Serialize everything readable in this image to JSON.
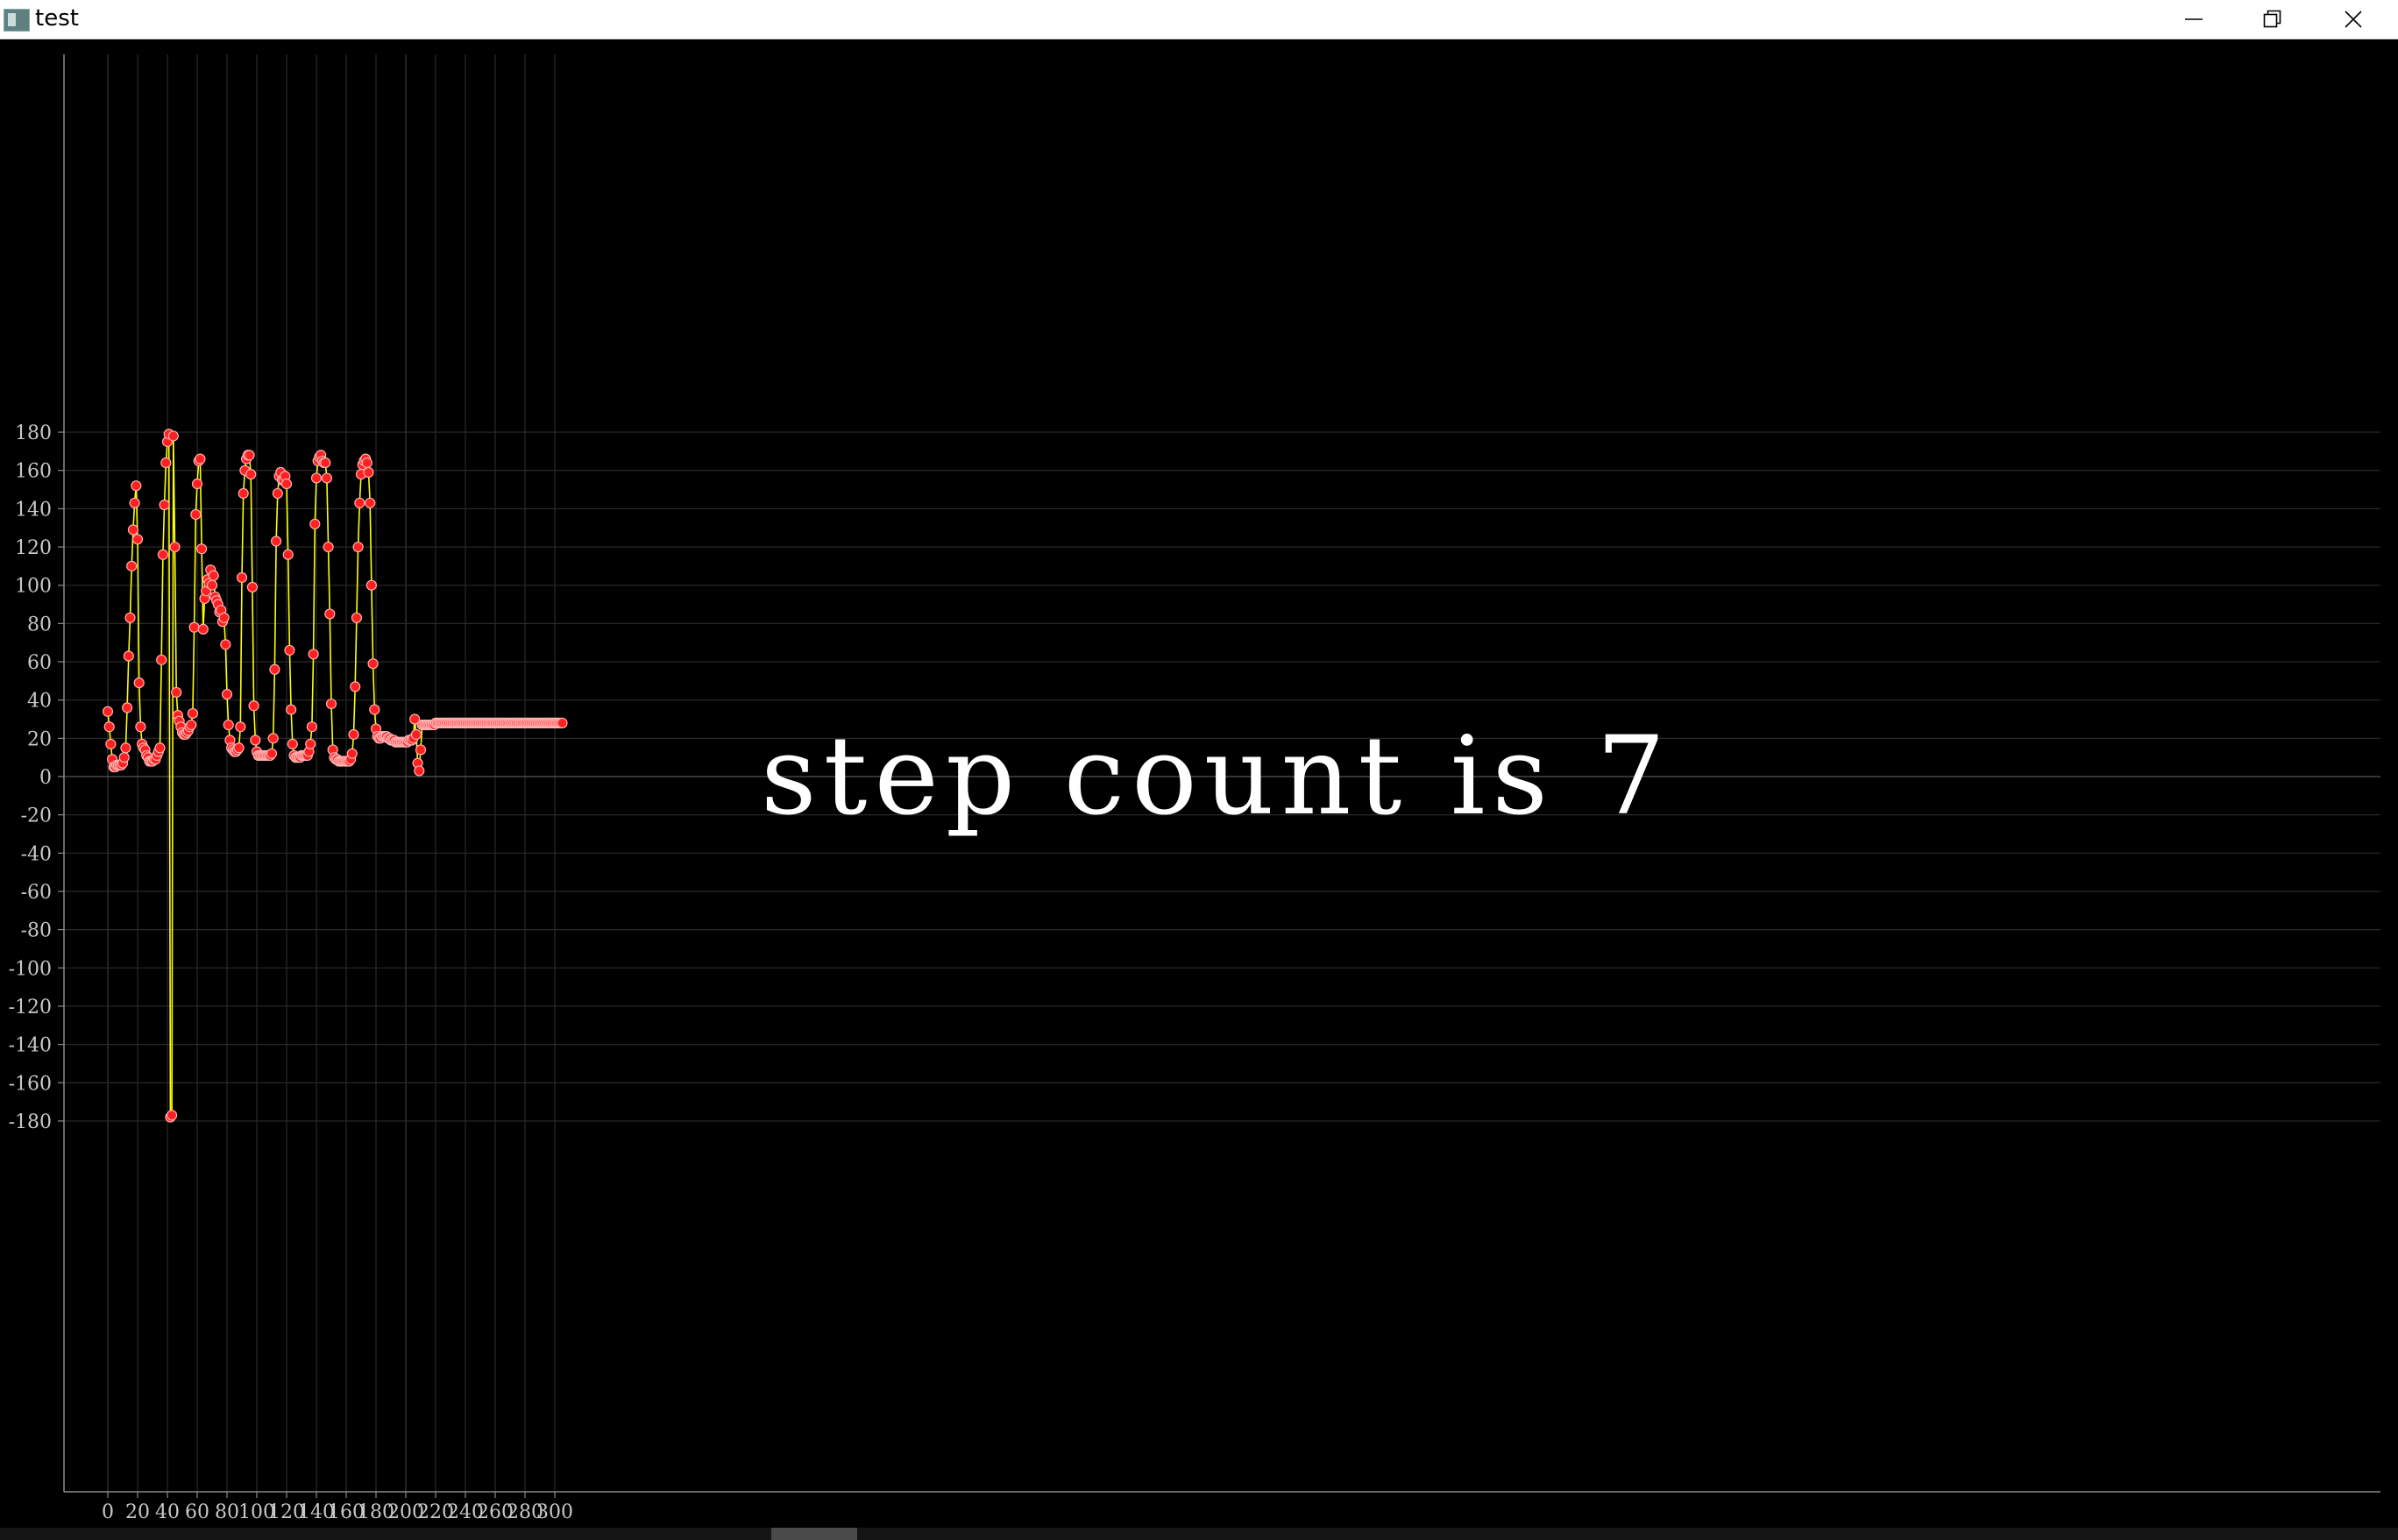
{
  "window": {
    "title": "test",
    "minimize_icon": "minimize-icon",
    "restore_icon": "restore-icon",
    "close_icon": "close-icon"
  },
  "overlay": {
    "text": "step count is 7"
  },
  "colors": {
    "background": "#000000",
    "line": "#ffff00",
    "marker_fill": "#ff2020",
    "marker_edge": "#ffb0b0",
    "grid": "#2a2a2a",
    "axis_text": "#c8c8c8"
  },
  "chart_data": {
    "type": "line",
    "title": "",
    "xlabel": "",
    "ylabel": "",
    "xlim": [
      -6,
      306
    ],
    "ylim": [
      -187,
      188
    ],
    "x_ticks": [
      0,
      20,
      40,
      60,
      80,
      100,
      120,
      140,
      160,
      180,
      200,
      220,
      240,
      260,
      280,
      300
    ],
    "y_ticks": [
      180,
      160,
      140,
      120,
      100,
      80,
      60,
      40,
      20,
      0,
      -20,
      -40,
      -60,
      -80,
      -100,
      -120,
      -140,
      -160,
      -180
    ],
    "x_tick_labels": [
      "0",
      "20",
      "40",
      "60",
      "80",
      "100",
      "120",
      "140",
      "160",
      "180",
      "200",
      "220",
      "240",
      "260",
      "280",
      "300"
    ],
    "y_tick_labels": [
      "180",
      "160",
      "140",
      "120",
      "100",
      "80",
      "60",
      "40",
      "20",
      "0",
      "-20",
      "-40",
      "-60",
      "-80",
      "-100",
      "-120",
      "-140",
      "-160",
      "-180"
    ],
    "grid": true,
    "markers": true,
    "series": [
      {
        "values": [
          34,
          26,
          17,
          9,
          5,
          5,
          6,
          6,
          6,
          6,
          7,
          10,
          15,
          36,
          63,
          83,
          110,
          129,
          143,
          152,
          124,
          49,
          26,
          17,
          15,
          14,
          11,
          10,
          8,
          8,
          8,
          9,
          9,
          11,
          13,
          15,
          61,
          116,
          142,
          164,
          175,
          179,
          -178,
          -177,
          178,
          120,
          44,
          32,
          29,
          26,
          23,
          22,
          22,
          23,
          24,
          26,
          27,
          33,
          78,
          137,
          153,
          165,
          166,
          119,
          77,
          93,
          97,
          103,
          101,
          108,
          100,
          105,
          94,
          92,
          90,
          86,
          87,
          81,
          83,
          69,
          43,
          27,
          19,
          15,
          14,
          13,
          13,
          14,
          15,
          26,
          104,
          148,
          160,
          166,
          168,
          168,
          158,
          99,
          37,
          19,
          13,
          11,
          11,
          11,
          11,
          11,
          11,
          11,
          11,
          11,
          12,
          20,
          56,
          123,
          148,
          157,
          159,
          155,
          155,
          157,
          153,
          116,
          66,
          35,
          17,
          11,
          10,
          10,
          10,
          10,
          11,
          11,
          11,
          11,
          11,
          13,
          17,
          26,
          64,
          132,
          156,
          165,
          167,
          168,
          165,
          164,
          164,
          156,
          120,
          85,
          38,
          14,
          10,
          9,
          9,
          8,
          8,
          8,
          8,
          8,
          8,
          8,
          8,
          9,
          12,
          22,
          47,
          83,
          120,
          143,
          158,
          163,
          165,
          166,
          164,
          159,
          143,
          100,
          59,
          35,
          25,
          21,
          20,
          20,
          21,
          21,
          21,
          21,
          20,
          20,
          19,
          19,
          19,
          18,
          18,
          18,
          18,
          18,
          18,
          18,
          18,
          18,
          19,
          19,
          19,
          20,
          30,
          22,
          7,
          3,
          14,
          27,
          27,
          27,
          27,
          27,
          27,
          27,
          27,
          27,
          28,
          28,
          28,
          28,
          28,
          28,
          28,
          28,
          28,
          28,
          28,
          28,
          28,
          28,
          28,
          28,
          28,
          28,
          28,
          28,
          28,
          28,
          28,
          28,
          28,
          28,
          28,
          28,
          28,
          28,
          28,
          28,
          28,
          28,
          28,
          28,
          28,
          28,
          28,
          28,
          28,
          28,
          28,
          28,
          28,
          28,
          28,
          28,
          28,
          28,
          28,
          28,
          28,
          28,
          28,
          28,
          28,
          28,
          28,
          28,
          28,
          28,
          28,
          28,
          28,
          28,
          28,
          28,
          28,
          28,
          28,
          28,
          28,
          28,
          28,
          28,
          28,
          28,
          28,
          28,
          28,
          28,
          28,
          28,
          28,
          28
        ]
      }
    ]
  }
}
